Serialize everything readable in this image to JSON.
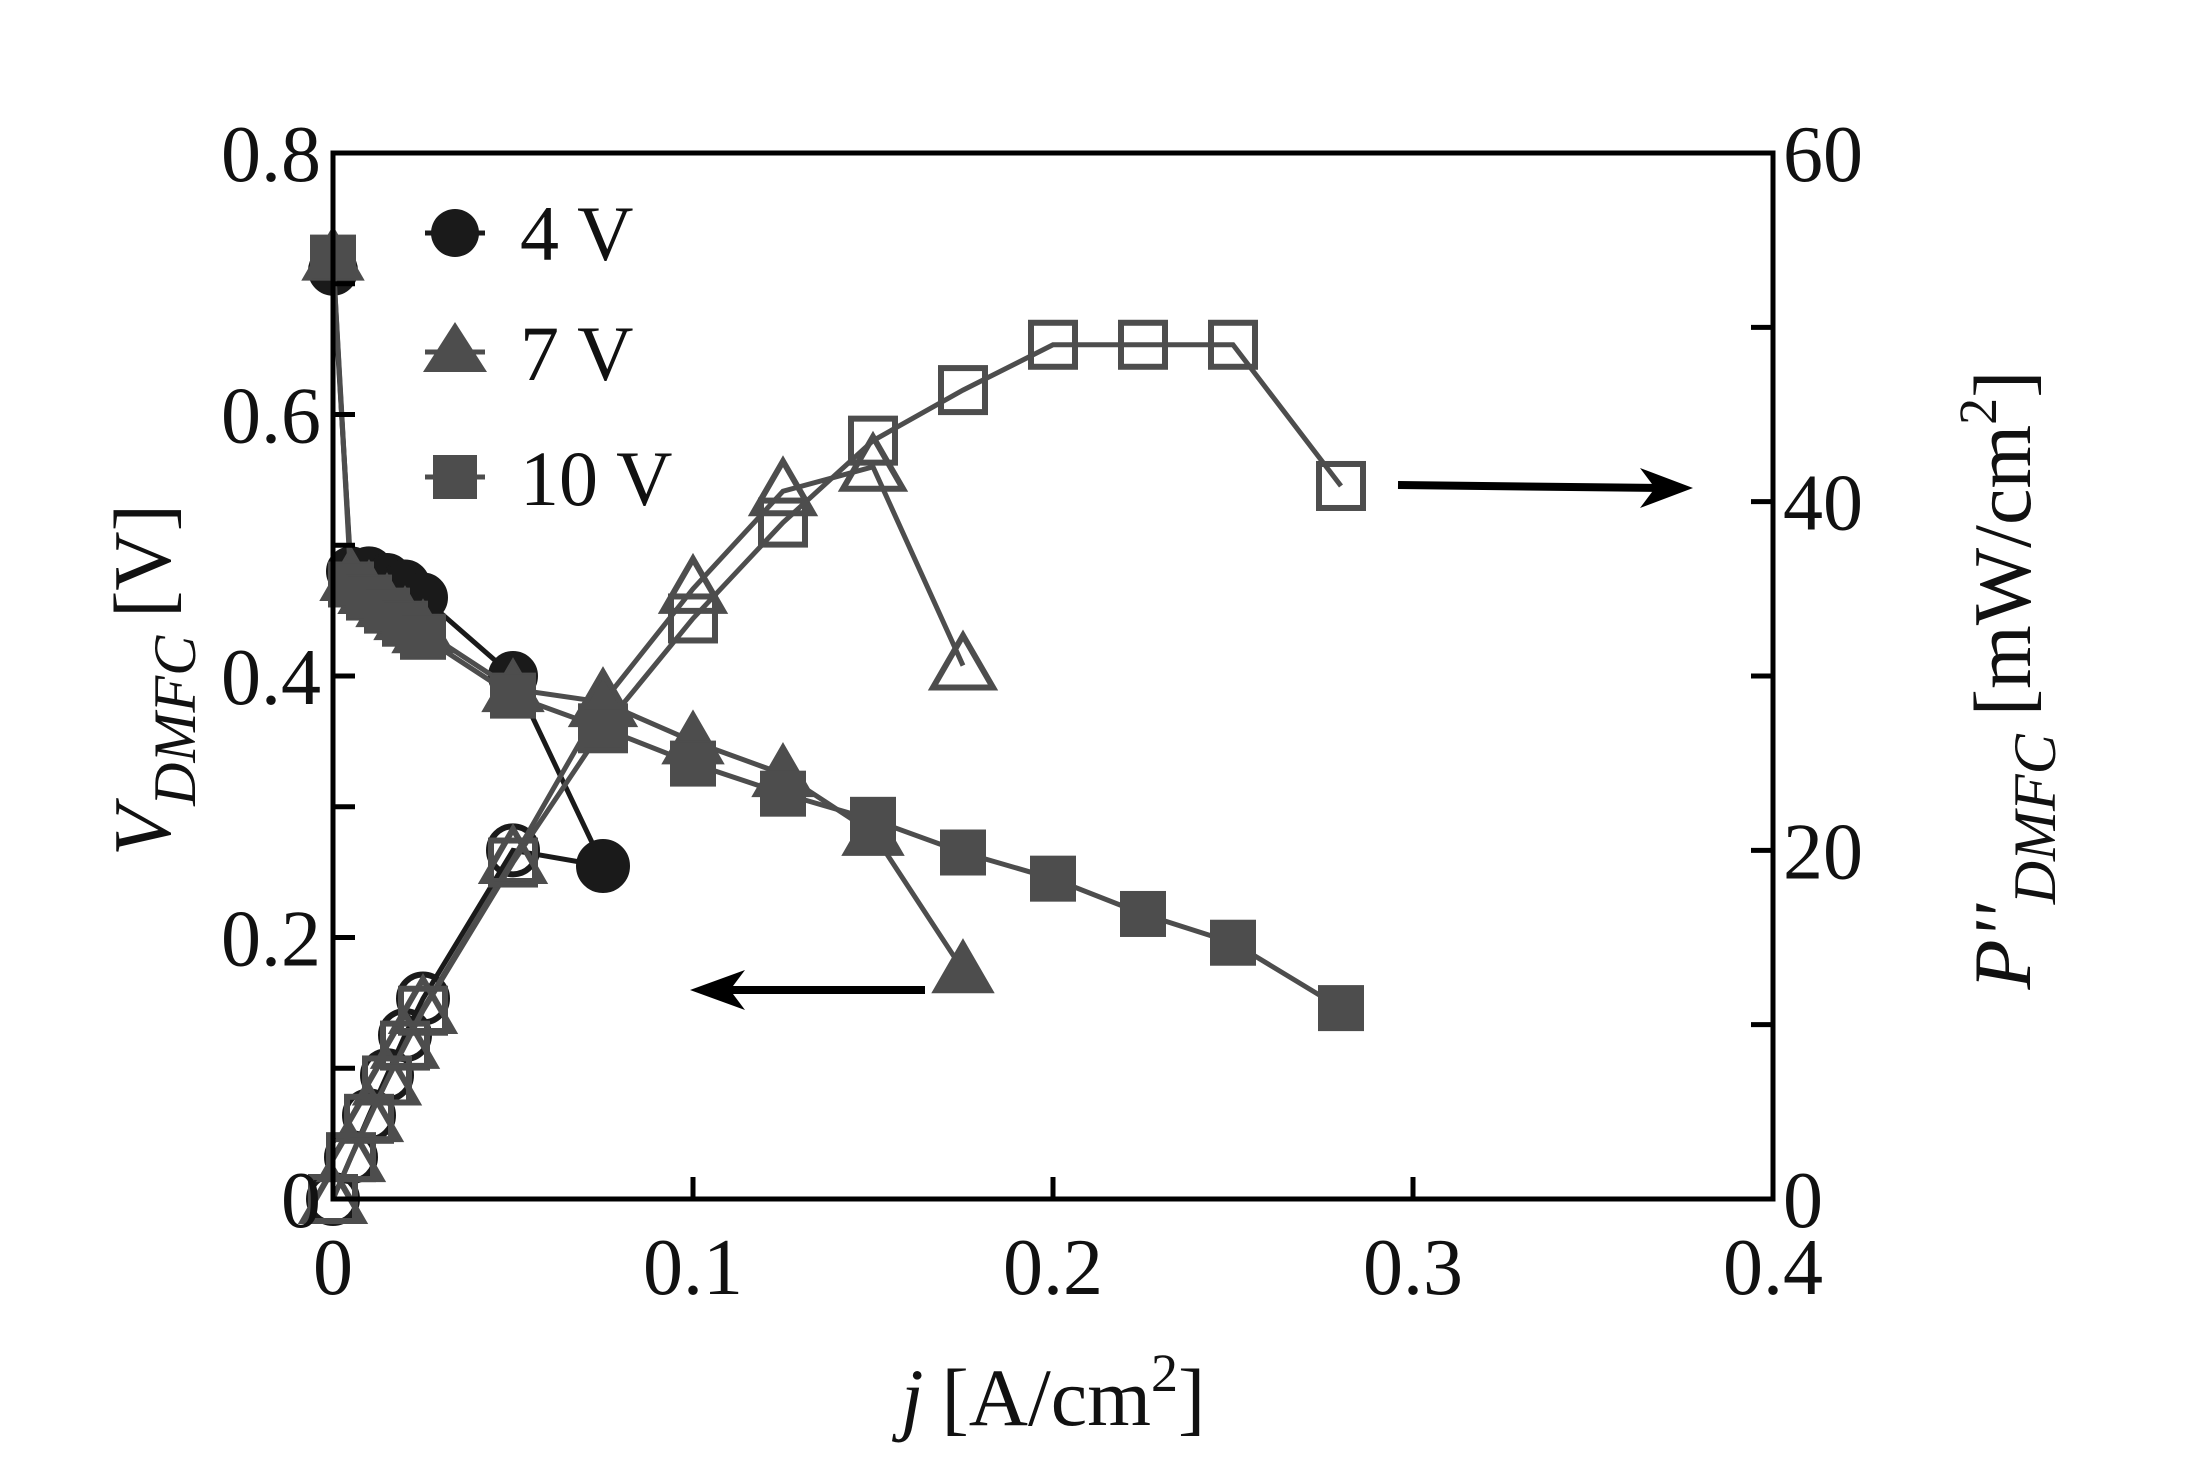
{
  "chart_data": {
    "type": "line",
    "title": "",
    "xlabel": "j [A/cm2]",
    "xlabel_parts": {
      "var": "j",
      "unit": "[A/cm",
      "sup": "2",
      "close": "]"
    },
    "ylabel_left": {
      "var": "V",
      "sub": "DMFC",
      "unit": "[V]"
    },
    "ylabel_right": {
      "var": "P''",
      "sub": "DMFC",
      "unit": "[mW/cm",
      "sup": "2",
      "close": "]"
    },
    "xlim": [
      0,
      0.4
    ],
    "ylim_left": [
      0,
      0.8
    ],
    "ylim_right": [
      0,
      60
    ],
    "xticks": [
      "0",
      "0.1",
      "0.2",
      "0.3",
      "0.4"
    ],
    "xtick_values": [
      0,
      0.1,
      0.2,
      0.3,
      0.4
    ],
    "yticks_left": [
      "0",
      "0.2",
      "0.4",
      "0.6",
      "0.8"
    ],
    "ytick_values_left": [
      0,
      0.2,
      0.4,
      0.6,
      0.8
    ],
    "yticks_right": [
      "0",
      "20",
      "40",
      "60"
    ],
    "ytick_values_right": [
      0,
      20,
      40,
      60
    ],
    "legend_position": "top-left",
    "series": [
      {
        "name": "4 V",
        "marker": "circle",
        "color": "#1a1a1a",
        "x": [
          0,
          0.005,
          0.01,
          0.015,
          0.02,
          0.025,
          0.05,
          0.075
        ],
        "voltage": [
          0.71,
          0.48,
          0.48,
          0.475,
          0.47,
          0.46,
          0.4,
          0.255
        ],
        "power": [
          0,
          2.4,
          4.8,
          7.1,
          9.4,
          11.5,
          20.0,
          19.1
        ]
      },
      {
        "name": "7 V",
        "marker": "triangle",
        "color": "#4d4d4d",
        "x": [
          0,
          0.005,
          0.01,
          0.015,
          0.02,
          0.025,
          0.05,
          0.075,
          0.1,
          0.125,
          0.15,
          0.175
        ],
        "voltage": [
          0.72,
          0.475,
          0.465,
          0.455,
          0.445,
          0.435,
          0.39,
          0.38,
          0.35,
          0.325,
          0.28,
          0.175
        ],
        "power": [
          0,
          2.4,
          4.7,
          6.8,
          8.9,
          10.9,
          19.5,
          28.5,
          35.0,
          40.6,
          42.0,
          30.6
        ]
      },
      {
        "name": "10 V",
        "marker": "square",
        "color": "#4d4d4d",
        "x": [
          0,
          0.005,
          0.01,
          0.015,
          0.02,
          0.025,
          0.05,
          0.075,
          0.1,
          0.125,
          0.15,
          0.175,
          0.2,
          0.225,
          0.25,
          0.28
        ],
        "voltage": [
          0.72,
          0.47,
          0.46,
          0.45,
          0.44,
          0.43,
          0.385,
          0.36,
          0.333,
          0.31,
          0.29,
          0.265,
          0.245,
          0.218,
          0.196,
          0.146
        ],
        "power": [
          0,
          2.4,
          4.6,
          6.8,
          8.8,
          10.8,
          19.3,
          27.0,
          33.3,
          38.8,
          43.5,
          46.4,
          49.0,
          49.0,
          49.0,
          40.9
        ]
      }
    ],
    "annotations": [
      "arrow-left-to-voltage-axis",
      "arrow-right-to-power-axis"
    ]
  }
}
